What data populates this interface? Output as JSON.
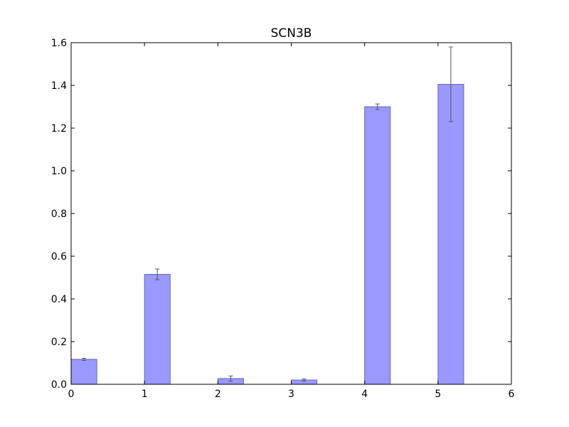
{
  "chart_data": {
    "type": "bar",
    "title": "SCN3B",
    "xlabel": "",
    "ylabel": "",
    "xlim": [
      0,
      6
    ],
    "ylim": [
      0,
      1.6
    ],
    "x_ticks": [
      "0",
      "1",
      "2",
      "3",
      "4",
      "5",
      "6"
    ],
    "y_ticks": [
      "0.0",
      "0.2",
      "0.4",
      "0.6",
      "0.8",
      "1.0",
      "1.2",
      "1.4",
      "1.6"
    ],
    "bar_width": 0.35,
    "x": [
      0,
      1,
      2,
      3,
      4,
      5
    ],
    "values": [
      0.117,
      0.515,
      0.027,
      0.02,
      1.3,
      1.405
    ],
    "errors": [
      0.005,
      0.025,
      0.012,
      0.005,
      0.013,
      0.175
    ],
    "bar_color": "#9999ff",
    "bar_edge_color": "#6666b3",
    "grid": false
  }
}
